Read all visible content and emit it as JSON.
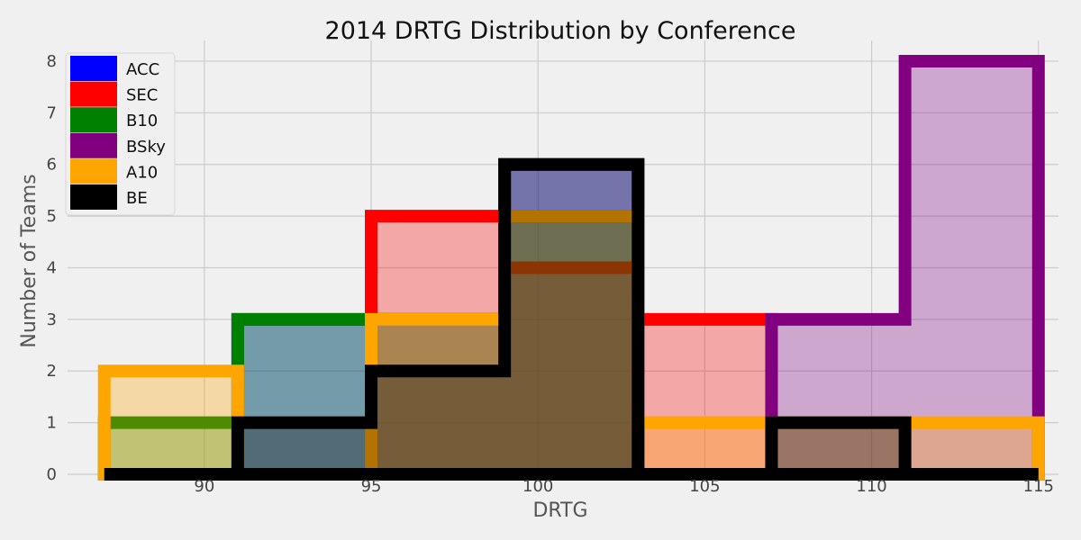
{
  "chart_data": {
    "type": "histogram",
    "title": "2014 DRTG Distribution by Conference",
    "xlabel": "DRTG",
    "ylabel": "Number of Teams",
    "xlim": [
      85.9,
      115.6
    ],
    "ylim": [
      0,
      8.4
    ],
    "x_ticks": [
      90,
      95,
      100,
      105,
      110,
      115
    ],
    "y_ticks": [
      0,
      1,
      2,
      3,
      4,
      5,
      6,
      7,
      8
    ],
    "bin_edges": [
      87,
      91,
      95,
      99,
      103,
      107,
      111,
      115
    ],
    "grid": true,
    "legend_position": "top-left",
    "series": [
      {
        "name": "ACC",
        "color": "#0000ff",
        "values": [
          0,
          3,
          3,
          6,
          0,
          0,
          0
        ]
      },
      {
        "name": "SEC",
        "color": "#ff0000",
        "values": [
          0,
          0,
          5,
          4,
          3,
          0,
          0
        ]
      },
      {
        "name": "B10",
        "color": "#008000",
        "values": [
          1,
          3,
          3,
          5,
          0,
          0,
          0
        ]
      },
      {
        "name": "BSky",
        "color": "#800080",
        "values": [
          0,
          0,
          0,
          0,
          0,
          3,
          8
        ]
      },
      {
        "name": "A10",
        "color": "#ffa500",
        "values": [
          2,
          0,
          3,
          5,
          1,
          1,
          1
        ]
      },
      {
        "name": "BE",
        "color": "#000000",
        "values": [
          0,
          1,
          2,
          6,
          0,
          1,
          0
        ]
      }
    ]
  }
}
